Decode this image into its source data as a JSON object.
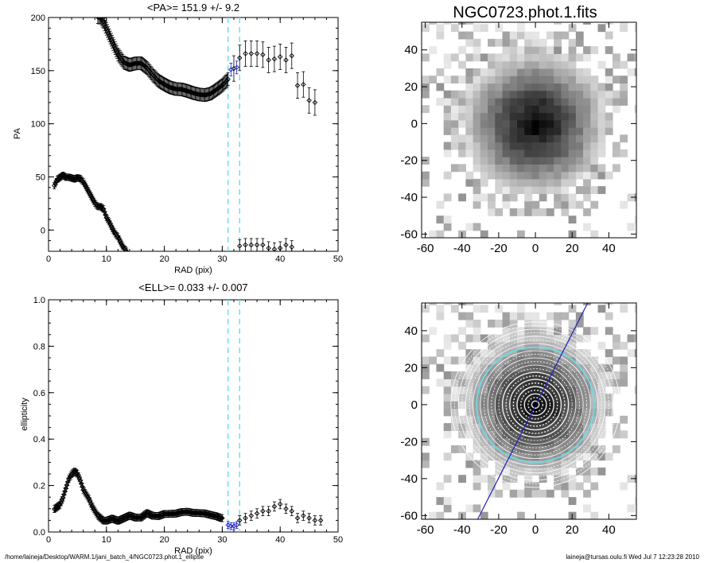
{
  "footer": {
    "path": "/home/laineja/Desktop/WARM.1/jani_batch_4/NGC0723.phot.1_ellipse",
    "user_date": "laineja@tursas.oulu.fi  Wed Jul  7 12:23:28 2010"
  },
  "colors": {
    "cyan_marker": "#66e0ee",
    "blue_fit": "#2020c0",
    "data": "#000000"
  },
  "chart_data": [
    {
      "type": "scatter",
      "title": "<PA>= 151.9 +/-   9.2",
      "xlabel": "RAD (pix)",
      "ylabel": "PA",
      "xlim": [
        0,
        50
      ],
      "ylim": [
        -20,
        200
      ],
      "xticks": [
        0,
        10,
        20,
        30,
        40,
        50
      ],
      "yticks": [
        0,
        50,
        100,
        150,
        200
      ],
      "vlines": [
        31,
        33
      ],
      "series": [
        {
          "name": "",
          "dense_range": [
            1,
            13.5
          ],
          "points": [
            [
              1,
              42
            ],
            [
              1.5,
              48
            ],
            [
              2,
              50
            ],
            [
              2.5,
              52
            ],
            [
              3,
              50
            ],
            [
              3.5,
              50
            ],
            [
              4,
              49
            ],
            [
              4.5,
              48
            ],
            [
              5,
              49
            ],
            [
              5.5,
              48
            ],
            [
              6,
              45
            ],
            [
              6.5,
              40
            ],
            [
              7,
              35
            ],
            [
              7.5,
              30
            ],
            [
              8,
              25
            ],
            [
              8.5,
              22
            ],
            [
              9,
              22
            ],
            [
              9.5,
              20
            ],
            [
              10,
              12
            ],
            [
              10.5,
              8
            ],
            [
              11,
              2
            ],
            [
              11.5,
              -3
            ],
            [
              12,
              -6
            ],
            [
              12.5,
              -12
            ],
            [
              13,
              -17
            ],
            [
              13.5,
              -20
            ]
          ],
          "err": 3
        },
        {
          "name": "",
          "dense_range": [
            8.5,
            31
          ],
          "points": [
            [
              8.5,
              200
            ],
            [
              9,
              200
            ],
            [
              9.5,
              196
            ],
            [
              10,
              190
            ],
            [
              10.5,
              184
            ],
            [
              11,
              178
            ],
            [
              11.5,
              172
            ],
            [
              12,
              166
            ],
            [
              12.5,
              162
            ],
            [
              13,
              158
            ],
            [
              14,
              155
            ],
            [
              15,
              156
            ],
            [
              16,
              156
            ],
            [
              17,
              152
            ],
            [
              18,
              146
            ],
            [
              19,
              141
            ],
            [
              20,
              138
            ],
            [
              21,
              135
            ],
            [
              22,
              133
            ],
            [
              23,
              132
            ],
            [
              24,
              130
            ],
            [
              25,
              128
            ],
            [
              26,
              127
            ],
            [
              27,
              127
            ],
            [
              28,
              129
            ],
            [
              29,
              133
            ],
            [
              30,
              137
            ],
            [
              31,
              142
            ]
          ],
          "err": 6
        },
        {
          "name": "",
          "dense_range": [],
          "points": [
            [
              32,
              152
            ],
            [
              33,
              162
            ],
            [
              34,
              166
            ],
            [
              35,
              166
            ],
            [
              36,
              166
            ],
            [
              37,
              165
            ],
            [
              38,
              160
            ],
            [
              39,
              161
            ],
            [
              40,
              163
            ],
            [
              41,
              160
            ],
            [
              42,
              164
            ],
            [
              43,
              136
            ],
            [
              44,
              137
            ],
            [
              45,
              122
            ],
            [
              46,
              120
            ]
          ],
          "err": 12
        },
        {
          "name": "",
          "dense_range": [],
          "points": [
            [
              33,
              -15
            ],
            [
              34,
              -14
            ],
            [
              35,
              -14
            ],
            [
              36,
              -14
            ],
            [
              37,
              -14
            ],
            [
              38,
              -17
            ],
            [
              39,
              -18
            ],
            [
              40,
              -17
            ],
            [
              41,
              -14
            ],
            [
              42,
              -16
            ]
          ],
          "err": 6
        },
        {
          "name": "",
          "blue": true,
          "dense_range": [],
          "points": [
            [
              31.5,
              151
            ],
            [
              32.5,
              153
            ]
          ],
          "err": 6
        }
      ]
    },
    {
      "type": "scatter",
      "title": "<ELL>= 0.033 +/-  0.007",
      "xlabel": "RAD (pix)",
      "ylabel": "ellipticity",
      "xlim": [
        0,
        50
      ],
      "ylim": [
        0,
        1
      ],
      "xticks": [
        0,
        10,
        20,
        30,
        40,
        50
      ],
      "yticks": [
        0.0,
        0.2,
        0.4,
        0.6,
        0.8,
        1.0
      ],
      "vlines": [
        31,
        33
      ],
      "series": [
        {
          "name": "",
          "dense_range": [
            1,
            30
          ],
          "points": [
            [
              1,
              0.1
            ],
            [
              1.5,
              0.11
            ],
            [
              2,
              0.12
            ],
            [
              2.5,
              0.15
            ],
            [
              3,
              0.19
            ],
            [
              3.5,
              0.23
            ],
            [
              4,
              0.25
            ],
            [
              4.5,
              0.26
            ],
            [
              5,
              0.25
            ],
            [
              5.5,
              0.22
            ],
            [
              6,
              0.18
            ],
            [
              6.5,
              0.16
            ],
            [
              7,
              0.14
            ],
            [
              7.5,
              0.11
            ],
            [
              8,
              0.09
            ],
            [
              8.5,
              0.07
            ],
            [
              9,
              0.06
            ],
            [
              9.5,
              0.05
            ],
            [
              10,
              0.05
            ],
            [
              11,
              0.06
            ],
            [
              12,
              0.05
            ],
            [
              13,
              0.06
            ],
            [
              14,
              0.07
            ],
            [
              15,
              0.06
            ],
            [
              16,
              0.06
            ],
            [
              17,
              0.08
            ],
            [
              18,
              0.07
            ],
            [
              19,
              0.07
            ],
            [
              20,
              0.08
            ],
            [
              21,
              0.08
            ],
            [
              22,
              0.08
            ],
            [
              23,
              0.085
            ],
            [
              24,
              0.085
            ],
            [
              25,
              0.08
            ],
            [
              26,
              0.08
            ],
            [
              27,
              0.08
            ],
            [
              28,
              0.075
            ],
            [
              29,
              0.07
            ],
            [
              30,
              0.06
            ]
          ],
          "err": 0.015
        },
        {
          "name": "",
          "dense_range": [],
          "points": [
            [
              33,
              0.05
            ],
            [
              34,
              0.06
            ],
            [
              35,
              0.07
            ],
            [
              36,
              0.08
            ],
            [
              37,
              0.09
            ],
            [
              38,
              0.09
            ],
            [
              39,
              0.11
            ],
            [
              40,
              0.12
            ],
            [
              41,
              0.1
            ],
            [
              42,
              0.09
            ],
            [
              43,
              0.06
            ],
            [
              44,
              0.07
            ],
            [
              45,
              0.06
            ],
            [
              46,
              0.05
            ],
            [
              47,
              0.05
            ]
          ],
          "err": 0.02
        },
        {
          "name": "",
          "blue": true,
          "dense_range": [],
          "points": [
            [
              31,
              0.03
            ],
            [
              31.5,
              0.025
            ],
            [
              32,
              0.025
            ],
            [
              32.5,
              0.03
            ]
          ],
          "err": 0.015
        }
      ]
    },
    {
      "type": "heatmap",
      "title": "NGC0723.phot.1.fits",
      "xlim": [
        -62,
        55
      ],
      "ylim": [
        -62,
        55
      ],
      "xticks": [
        -60,
        -40,
        -20,
        0,
        20,
        40
      ],
      "yticks": [
        -60,
        -40,
        -20,
        0,
        20,
        40
      ],
      "pixel_size": 4,
      "core_radius": 40,
      "colormap": "inverted grayscale"
    },
    {
      "type": "heatmap",
      "title": "",
      "xlim": [
        -62,
        55
      ],
      "ylim": [
        -62,
        55
      ],
      "xticks": [
        -60,
        -40,
        -20,
        0,
        20,
        40
      ],
      "yticks": [
        -60,
        -40,
        -20,
        0,
        20,
        40
      ],
      "pixel_size": 4,
      "core_radius": 40,
      "colormap": "inverted grayscale with isophote ellipses",
      "ellipse_radii": [
        2,
        4,
        6,
        8,
        10,
        12,
        14,
        16,
        18,
        20,
        22,
        24,
        26,
        28,
        30,
        32,
        34,
        36,
        38,
        40,
        42,
        44,
        46
      ],
      "highlight_radius": 32,
      "pa_line": [
        [
          -33,
          -65
        ],
        [
          30,
          58
        ]
      ]
    }
  ]
}
